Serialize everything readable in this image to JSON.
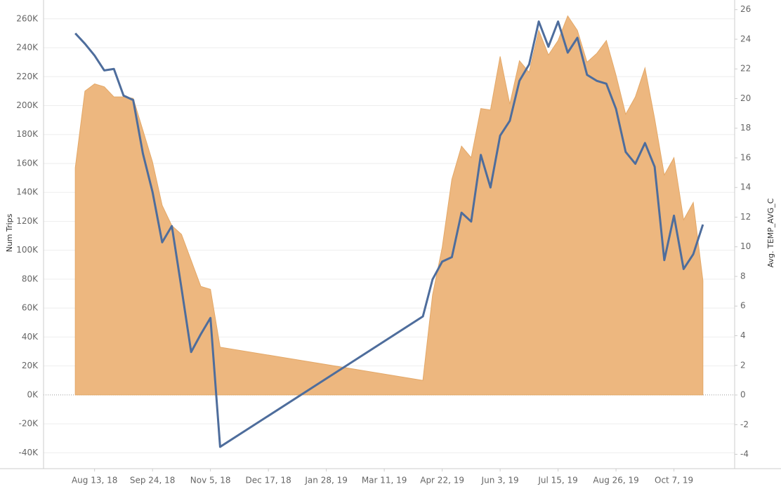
{
  "chart_data": {
    "type": "area-line",
    "x": [
      "2018-07-30",
      "2018-08-06",
      "2018-08-13",
      "2018-08-20",
      "2018-08-27",
      "2018-09-03",
      "2018-09-10",
      "2018-09-17",
      "2018-09-24",
      "2018-10-01",
      "2018-10-08",
      "2018-10-15",
      "2018-10-22",
      "2018-10-29",
      "2018-11-05",
      "2018-11-12",
      "2019-04-08",
      "2019-04-15",
      "2019-04-22",
      "2019-04-29",
      "2019-05-06",
      "2019-05-13",
      "2019-05-20",
      "2019-05-27",
      "2019-06-03",
      "2019-06-10",
      "2019-06-17",
      "2019-06-24",
      "2019-07-01",
      "2019-07-08",
      "2019-07-15",
      "2019-07-22",
      "2019-07-29",
      "2019-08-05",
      "2019-08-12",
      "2019-08-19",
      "2019-08-26",
      "2019-09-02",
      "2019-09-09",
      "2019-09-16",
      "2019-09-23",
      "2019-09-30",
      "2019-10-07",
      "2019-10-14",
      "2019-10-21",
      "2019-10-28"
    ],
    "xlim": [
      "2018-07-07",
      "2019-11-20"
    ],
    "xticks": [
      {
        "value": "2018-08-13",
        "label": "Aug 13, 18"
      },
      {
        "value": "2018-09-24",
        "label": "Sep 24, 18"
      },
      {
        "value": "2018-11-05",
        "label": "Nov 5, 18"
      },
      {
        "value": "2018-12-17",
        "label": "Dec 17, 18"
      },
      {
        "value": "2019-01-28",
        "label": "Jan 28, 19"
      },
      {
        "value": "2019-03-11",
        "label": "Mar 11, 19"
      },
      {
        "value": "2019-04-22",
        "label": "Apr 22, 19"
      },
      {
        "value": "2019-06-03",
        "label": "Jun 3, 19"
      },
      {
        "value": "2019-07-15",
        "label": "Jul 15, 19"
      },
      {
        "value": "2019-08-26",
        "label": "Aug 26, 19"
      },
      {
        "value": "2019-10-07",
        "label": "Oct 7, 19"
      }
    ],
    "ylabel": "Num Trips",
    "y2label": "Avg. TEMP_AVG_C",
    "ylim": [
      -51000,
      273000
    ],
    "yticks": [
      {
        "value": -40000,
        "label": "-40K"
      },
      {
        "value": -20000,
        "label": "-20K"
      },
      {
        "value": 0,
        "label": "0K"
      },
      {
        "value": 20000,
        "label": "20K"
      },
      {
        "value": 40000,
        "label": "40K"
      },
      {
        "value": 60000,
        "label": "60K"
      },
      {
        "value": 80000,
        "label": "80K"
      },
      {
        "value": 100000,
        "label": "100K"
      },
      {
        "value": 120000,
        "label": "120K"
      },
      {
        "value": 140000,
        "label": "140K"
      },
      {
        "value": 160000,
        "label": "160K"
      },
      {
        "value": 180000,
        "label": "180K"
      },
      {
        "value": 200000,
        "label": "200K"
      },
      {
        "value": 220000,
        "label": "220K"
      },
      {
        "value": 240000,
        "label": "240K"
      },
      {
        "value": 260000,
        "label": "260K"
      }
    ],
    "y2lim": [
      -4.97,
      26.65
    ],
    "y2ticks": [
      -4,
      -2,
      0,
      2,
      4,
      6,
      8,
      10,
      12,
      14,
      16,
      18,
      20,
      22,
      24,
      26
    ],
    "grid": true,
    "series": [
      {
        "kind": "area",
        "color": "#edb77f",
        "values": [
          157000,
          210000,
          215000,
          213000,
          206000,
          206000,
          205000,
          183000,
          161000,
          131000,
          117000,
          111000,
          93000,
          75000,
          73000,
          33000,
          10000,
          69000,
          102000,
          149000,
          172000,
          164000,
          198000,
          197000,
          234000,
          201000,
          231000,
          223000,
          252000,
          235000,
          245000,
          262000,
          252000,
          230000,
          236000,
          245000,
          221000,
          194000,
          206000,
          226000,
          191000,
          152000,
          164000,
          121000,
          133000,
          79000
        ]
      },
      {
        "kind": "line",
        "axis": "y2",
        "color": "#4e6d9c",
        "values": [
          24.4,
          23.7,
          22.9,
          21.9,
          22.0,
          20.2,
          19.9,
          16.3,
          13.7,
          10.3,
          11.4,
          7.2,
          2.9,
          4.1,
          5.2,
          -3.5,
          5.3,
          7.8,
          9.0,
          9.3,
          12.3,
          11.7,
          16.2,
          14.0,
          17.5,
          18.5,
          21.2,
          22.3,
          25.2,
          23.5,
          25.2,
          23.1,
          24.1,
          21.6,
          21.2,
          21.0,
          19.3,
          16.4,
          15.6,
          17.0,
          15.4,
          9.1,
          12.1,
          8.5,
          9.5,
          11.5
        ]
      }
    ]
  }
}
